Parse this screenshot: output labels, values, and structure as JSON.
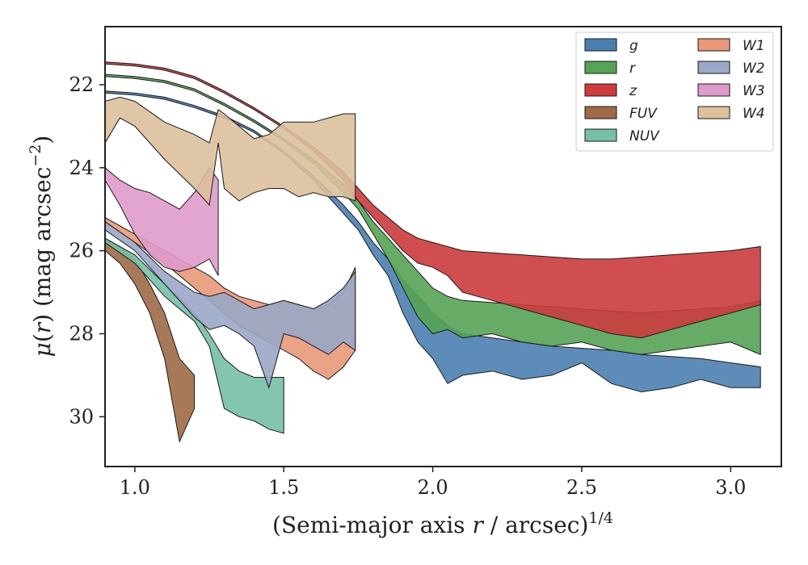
{
  "chart_data": {
    "type": "area",
    "xlabel": "(Semi-major axis r / arcsec)^{1/4}",
    "ylabel": "μ(r) (mag arcsec^{−2})",
    "xlim": [
      0.9,
      3.17
    ],
    "ylim": [
      31.2,
      20.6
    ],
    "y_inverted": true,
    "xticks": [
      "1.0",
      "1.5",
      "2.0",
      "2.5",
      "3.0"
    ],
    "xtick_values": [
      1.0,
      1.5,
      2.0,
      2.5,
      3.0
    ],
    "yticks": [
      "22",
      "24",
      "26",
      "28",
      "30"
    ],
    "ytick_values": [
      22,
      24,
      26,
      28,
      30
    ],
    "legend_position": "top-right",
    "legend_columns": 2,
    "series": [
      {
        "name": "g",
        "color": "#4c7fb0",
        "x": [
          0.9,
          1.0,
          1.1,
          1.2,
          1.3,
          1.4,
          1.5,
          1.6,
          1.7,
          1.75,
          1.8,
          1.85,
          1.9,
          1.95,
          2.0,
          2.05,
          2.1,
          2.2,
          2.3,
          2.4,
          2.5,
          2.6,
          2.7,
          2.8,
          2.9,
          3.0,
          3.1
        ],
        "y_upper": [
          22.15,
          22.2,
          22.3,
          22.5,
          22.75,
          23.1,
          23.6,
          24.2,
          24.9,
          25.3,
          25.8,
          26.2,
          26.7,
          27.1,
          27.5,
          27.8,
          28.0,
          28.1,
          28.2,
          28.3,
          28.35,
          28.4,
          28.5,
          28.55,
          28.6,
          28.7,
          28.8
        ],
        "y_lower": [
          22.2,
          22.25,
          22.35,
          22.55,
          22.8,
          23.15,
          23.65,
          24.3,
          25.1,
          25.5,
          26.1,
          26.6,
          27.5,
          28.2,
          28.6,
          29.2,
          29.0,
          28.9,
          29.1,
          29.0,
          28.7,
          29.2,
          29.4,
          29.3,
          29.1,
          29.3,
          29.3
        ]
      },
      {
        "name": "r",
        "color": "#55a357",
        "x": [
          0.9,
          1.0,
          1.1,
          1.2,
          1.3,
          1.4,
          1.5,
          1.6,
          1.7,
          1.75,
          1.8,
          1.85,
          1.9,
          1.95,
          2.0,
          2.05,
          2.1,
          2.2,
          2.3,
          2.4,
          2.5,
          2.6,
          2.7,
          2.8,
          2.9,
          3.0,
          3.1
        ],
        "y_upper": [
          21.75,
          21.8,
          21.9,
          22.1,
          22.45,
          22.85,
          23.3,
          23.8,
          24.4,
          24.8,
          25.3,
          25.7,
          26.1,
          26.5,
          26.9,
          27.1,
          27.2,
          27.25,
          27.3,
          27.35,
          27.4,
          27.45,
          27.5,
          27.45,
          27.4,
          27.35,
          27.2
        ],
        "y_lower": [
          21.8,
          21.85,
          21.95,
          22.15,
          22.5,
          22.9,
          23.35,
          23.9,
          24.6,
          25.0,
          25.6,
          26.2,
          26.9,
          27.6,
          28.0,
          27.9,
          28.1,
          28.0,
          28.2,
          28.3,
          28.2,
          28.4,
          28.5,
          28.4,
          28.3,
          28.2,
          28.5
        ]
      },
      {
        "name": "z",
        "color": "#cc3b3d",
        "x": [
          0.9,
          1.0,
          1.1,
          1.2,
          1.3,
          1.4,
          1.5,
          1.6,
          1.7,
          1.75,
          1.8,
          1.85,
          1.9,
          1.95,
          2.0,
          2.05,
          2.1,
          2.2,
          2.3,
          2.4,
          2.5,
          2.6,
          2.7,
          2.8,
          2.9,
          3.0,
          3.1
        ],
        "y_upper": [
          21.45,
          21.5,
          21.6,
          21.8,
          22.15,
          22.55,
          23.0,
          23.5,
          24.1,
          24.5,
          24.9,
          25.2,
          25.5,
          25.7,
          25.8,
          25.9,
          26.0,
          26.05,
          26.1,
          26.15,
          26.2,
          26.2,
          26.15,
          26.1,
          26.05,
          26.0,
          25.9
        ],
        "y_lower": [
          21.5,
          21.55,
          21.65,
          21.85,
          22.2,
          22.6,
          23.05,
          23.6,
          24.3,
          24.8,
          25.2,
          25.6,
          26.0,
          26.3,
          26.4,
          26.6,
          27.0,
          27.2,
          27.4,
          27.6,
          27.8,
          28.0,
          28.1,
          27.9,
          27.7,
          27.5,
          27.3
        ]
      },
      {
        "name": "FUV",
        "color": "#9e6a47",
        "x": [
          0.9,
          0.95,
          1.0,
          1.05,
          1.1,
          1.15,
          1.2
        ],
        "y_upper": [
          25.7,
          25.9,
          26.2,
          26.8,
          27.5,
          28.6,
          29.0
        ],
        "y_lower": [
          26.0,
          26.3,
          26.8,
          27.5,
          28.6,
          30.6,
          29.8
        ]
      },
      {
        "name": "NUV",
        "color": "#77bfa6",
        "x": [
          0.9,
          1.0,
          1.1,
          1.2,
          1.25,
          1.3,
          1.35,
          1.4,
          1.45,
          1.5
        ],
        "y_upper": [
          25.7,
          26.1,
          26.8,
          27.5,
          28.0,
          28.6,
          28.9,
          29.05,
          29.05,
          29.05
        ],
        "y_lower": [
          25.8,
          26.3,
          27.1,
          27.7,
          28.3,
          29.8,
          30.0,
          30.1,
          30.3,
          30.4
        ]
      },
      {
        "name": "W1",
        "color": "#e8997a",
        "x": [
          0.9,
          1.0,
          1.1,
          1.2,
          1.25,
          1.3,
          1.35,
          1.4,
          1.45,
          1.5,
          1.55,
          1.6,
          1.65,
          1.7,
          1.74
        ],
        "y_upper": [
          25.2,
          25.6,
          26.0,
          26.4,
          26.6,
          26.9,
          27.1,
          27.2,
          27.3,
          27.2,
          27.3,
          27.4,
          27.3,
          27.0,
          26.4
        ],
        "y_lower": [
          25.3,
          25.8,
          26.3,
          26.9,
          27.2,
          27.5,
          27.8,
          28.0,
          28.2,
          28.4,
          28.6,
          28.9,
          29.1,
          28.8,
          28.4
        ]
      },
      {
        "name": "W2",
        "color": "#9aa7c7",
        "x": [
          0.9,
          1.0,
          1.1,
          1.2,
          1.25,
          1.3,
          1.35,
          1.4,
          1.45,
          1.5,
          1.55,
          1.6,
          1.65,
          1.7,
          1.74
        ],
        "y_upper": [
          25.3,
          25.8,
          26.5,
          27.0,
          27.1,
          27.0,
          27.2,
          27.4,
          27.3,
          27.2,
          27.3,
          27.4,
          27.2,
          26.9,
          26.5
        ],
        "y_lower": [
          25.5,
          26.0,
          26.8,
          27.6,
          27.9,
          27.8,
          28.0,
          28.3,
          29.3,
          28.0,
          28.1,
          28.3,
          28.5,
          28.2,
          28.4
        ]
      },
      {
        "name": "W3",
        "color": "#df9bcb",
        "x": [
          0.9,
          0.95,
          1.0,
          1.05,
          1.1,
          1.15,
          1.2,
          1.25,
          1.28
        ],
        "y_upper": [
          24.0,
          24.3,
          24.5,
          24.6,
          24.8,
          25.0,
          24.6,
          24.0,
          24.3
        ],
        "y_lower": [
          24.3,
          24.9,
          25.6,
          26.1,
          26.4,
          26.5,
          26.4,
          26.2,
          26.6
        ]
      },
      {
        "name": "W4",
        "color": "#dcc09c",
        "x": [
          0.9,
          0.95,
          1.0,
          1.1,
          1.2,
          1.25,
          1.28,
          1.3,
          1.35,
          1.4,
          1.45,
          1.5,
          1.55,
          1.6,
          1.65,
          1.7,
          1.74
        ],
        "y_upper": [
          22.4,
          22.3,
          22.4,
          22.9,
          23.2,
          23.4,
          22.6,
          22.7,
          23.0,
          23.3,
          23.2,
          22.9,
          22.9,
          22.9,
          22.8,
          22.7,
          22.7
        ],
        "y_lower": [
          23.4,
          22.8,
          23.0,
          23.8,
          24.5,
          24.9,
          23.4,
          24.5,
          24.8,
          24.6,
          24.5,
          24.5,
          24.7,
          24.6,
          24.7,
          24.7,
          24.8
        ]
      }
    ]
  },
  "legend": {
    "items": [
      {
        "label": "g",
        "color": "#4c7fb0"
      },
      {
        "label": "r",
        "color": "#55a357"
      },
      {
        "label": "z",
        "color": "#cc3b3d"
      },
      {
        "label": "FUV",
        "color": "#9e6a47"
      },
      {
        "label": "NUV",
        "color": "#77bfa6"
      },
      {
        "label": "W1",
        "color": "#e8997a"
      },
      {
        "label": "W2",
        "color": "#9aa7c7"
      },
      {
        "label": "W3",
        "color": "#df9bcb"
      },
      {
        "label": "W4",
        "color": "#dcc09c"
      }
    ]
  }
}
